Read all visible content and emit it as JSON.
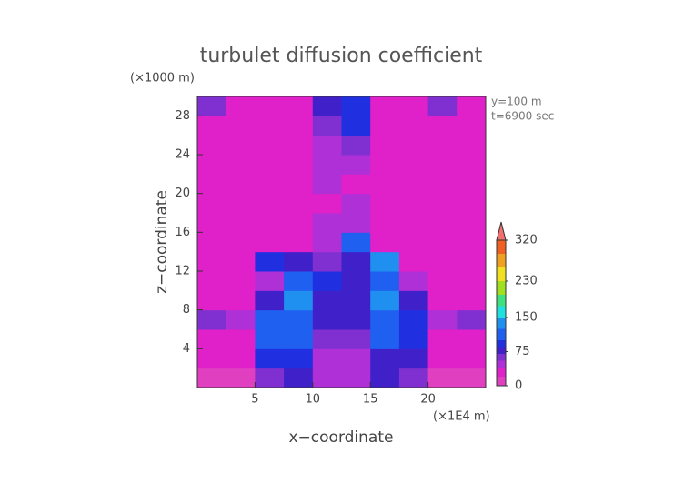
{
  "chart_data": {
    "type": "heatmap",
    "title": "turbulet diffusion coefficient",
    "y_unit": "(×1000 m)",
    "x_unit": "(×1E4 m)",
    "xlabel": "x−coordinate",
    "ylabel": "z−coordinate",
    "annotations": [
      "y=100 m",
      "t=6900 sec"
    ],
    "xbins": [
      0,
      2.5,
      5,
      7.5,
      10,
      12.5,
      15,
      17.5,
      20,
      22.5,
      25
    ],
    "ybins": [
      0,
      2,
      4,
      6,
      8,
      10,
      12,
      14,
      16,
      18,
      20,
      22,
      24,
      26,
      28,
      30
    ],
    "values": [
      [
        10,
        10,
        60,
        80,
        40,
        40,
        70,
        60,
        10,
        10
      ],
      [
        30,
        30,
        90,
        90,
        50,
        50,
        80,
        80,
        30,
        30
      ],
      [
        30,
        30,
        100,
        110,
        60,
        60,
        100,
        90,
        30,
        30
      ],
      [
        60,
        50,
        110,
        120,
        70,
        70,
        110,
        90,
        50,
        60
      ],
      [
        20,
        20,
        80,
        130,
        80,
        70,
        140,
        80,
        20,
        20
      ],
      [
        20,
        20,
        50,
        110,
        90,
        80,
        100,
        50,
        20,
        20
      ],
      [
        20,
        20,
        90,
        80,
        60,
        70,
        140,
        20,
        20,
        20
      ],
      [
        20,
        20,
        20,
        20,
        50,
        120,
        20,
        20,
        20,
        20
      ],
      [
        20,
        20,
        20,
        20,
        40,
        40,
        20,
        20,
        20,
        20
      ],
      [
        20,
        20,
        20,
        20,
        30,
        40,
        20,
        20,
        20,
        20
      ],
      [
        20,
        20,
        20,
        20,
        40,
        30,
        20,
        20,
        20,
        20
      ],
      [
        20,
        20,
        20,
        20,
        50,
        40,
        20,
        20,
        20,
        20
      ],
      [
        20,
        20,
        20,
        20,
        50,
        60,
        20,
        20,
        20,
        20
      ],
      [
        20,
        20,
        20,
        20,
        60,
        90,
        20,
        20,
        20,
        20
      ],
      [
        60,
        20,
        20,
        20,
        70,
        90,
        20,
        20,
        60,
        20
      ]
    ],
    "xlim": [
      0,
      25
    ],
    "ylim": [
      0,
      30
    ],
    "xticks": [
      5,
      10,
      15,
      20
    ],
    "yticks": [
      4,
      8,
      12,
      16,
      20,
      24,
      28
    ],
    "clim": [
      0,
      320
    ],
    "cticks": [
      0,
      75,
      150,
      230,
      320
    ],
    "colorscale": [
      {
        "value": 0,
        "color": "#e040c0"
      },
      {
        "value": 20,
        "color": "#e020c8"
      },
      {
        "value": 40,
        "color": "#b030d8"
      },
      {
        "value": 55,
        "color": "#8030d0"
      },
      {
        "value": 70,
        "color": "#4020c8"
      },
      {
        "value": 85,
        "color": "#2030e0"
      },
      {
        "value": 100,
        "color": "#2060f0"
      },
      {
        "value": 125,
        "color": "#2090f0"
      },
      {
        "value": 150,
        "color": "#20e0e0"
      },
      {
        "value": 175,
        "color": "#40e080"
      },
      {
        "value": 200,
        "color": "#a0e020"
      },
      {
        "value": 230,
        "color": "#f0e020"
      },
      {
        "value": 260,
        "color": "#f0a020"
      },
      {
        "value": 290,
        "color": "#f06020"
      },
      {
        "value": 320,
        "color": "#f07070"
      }
    ]
  }
}
